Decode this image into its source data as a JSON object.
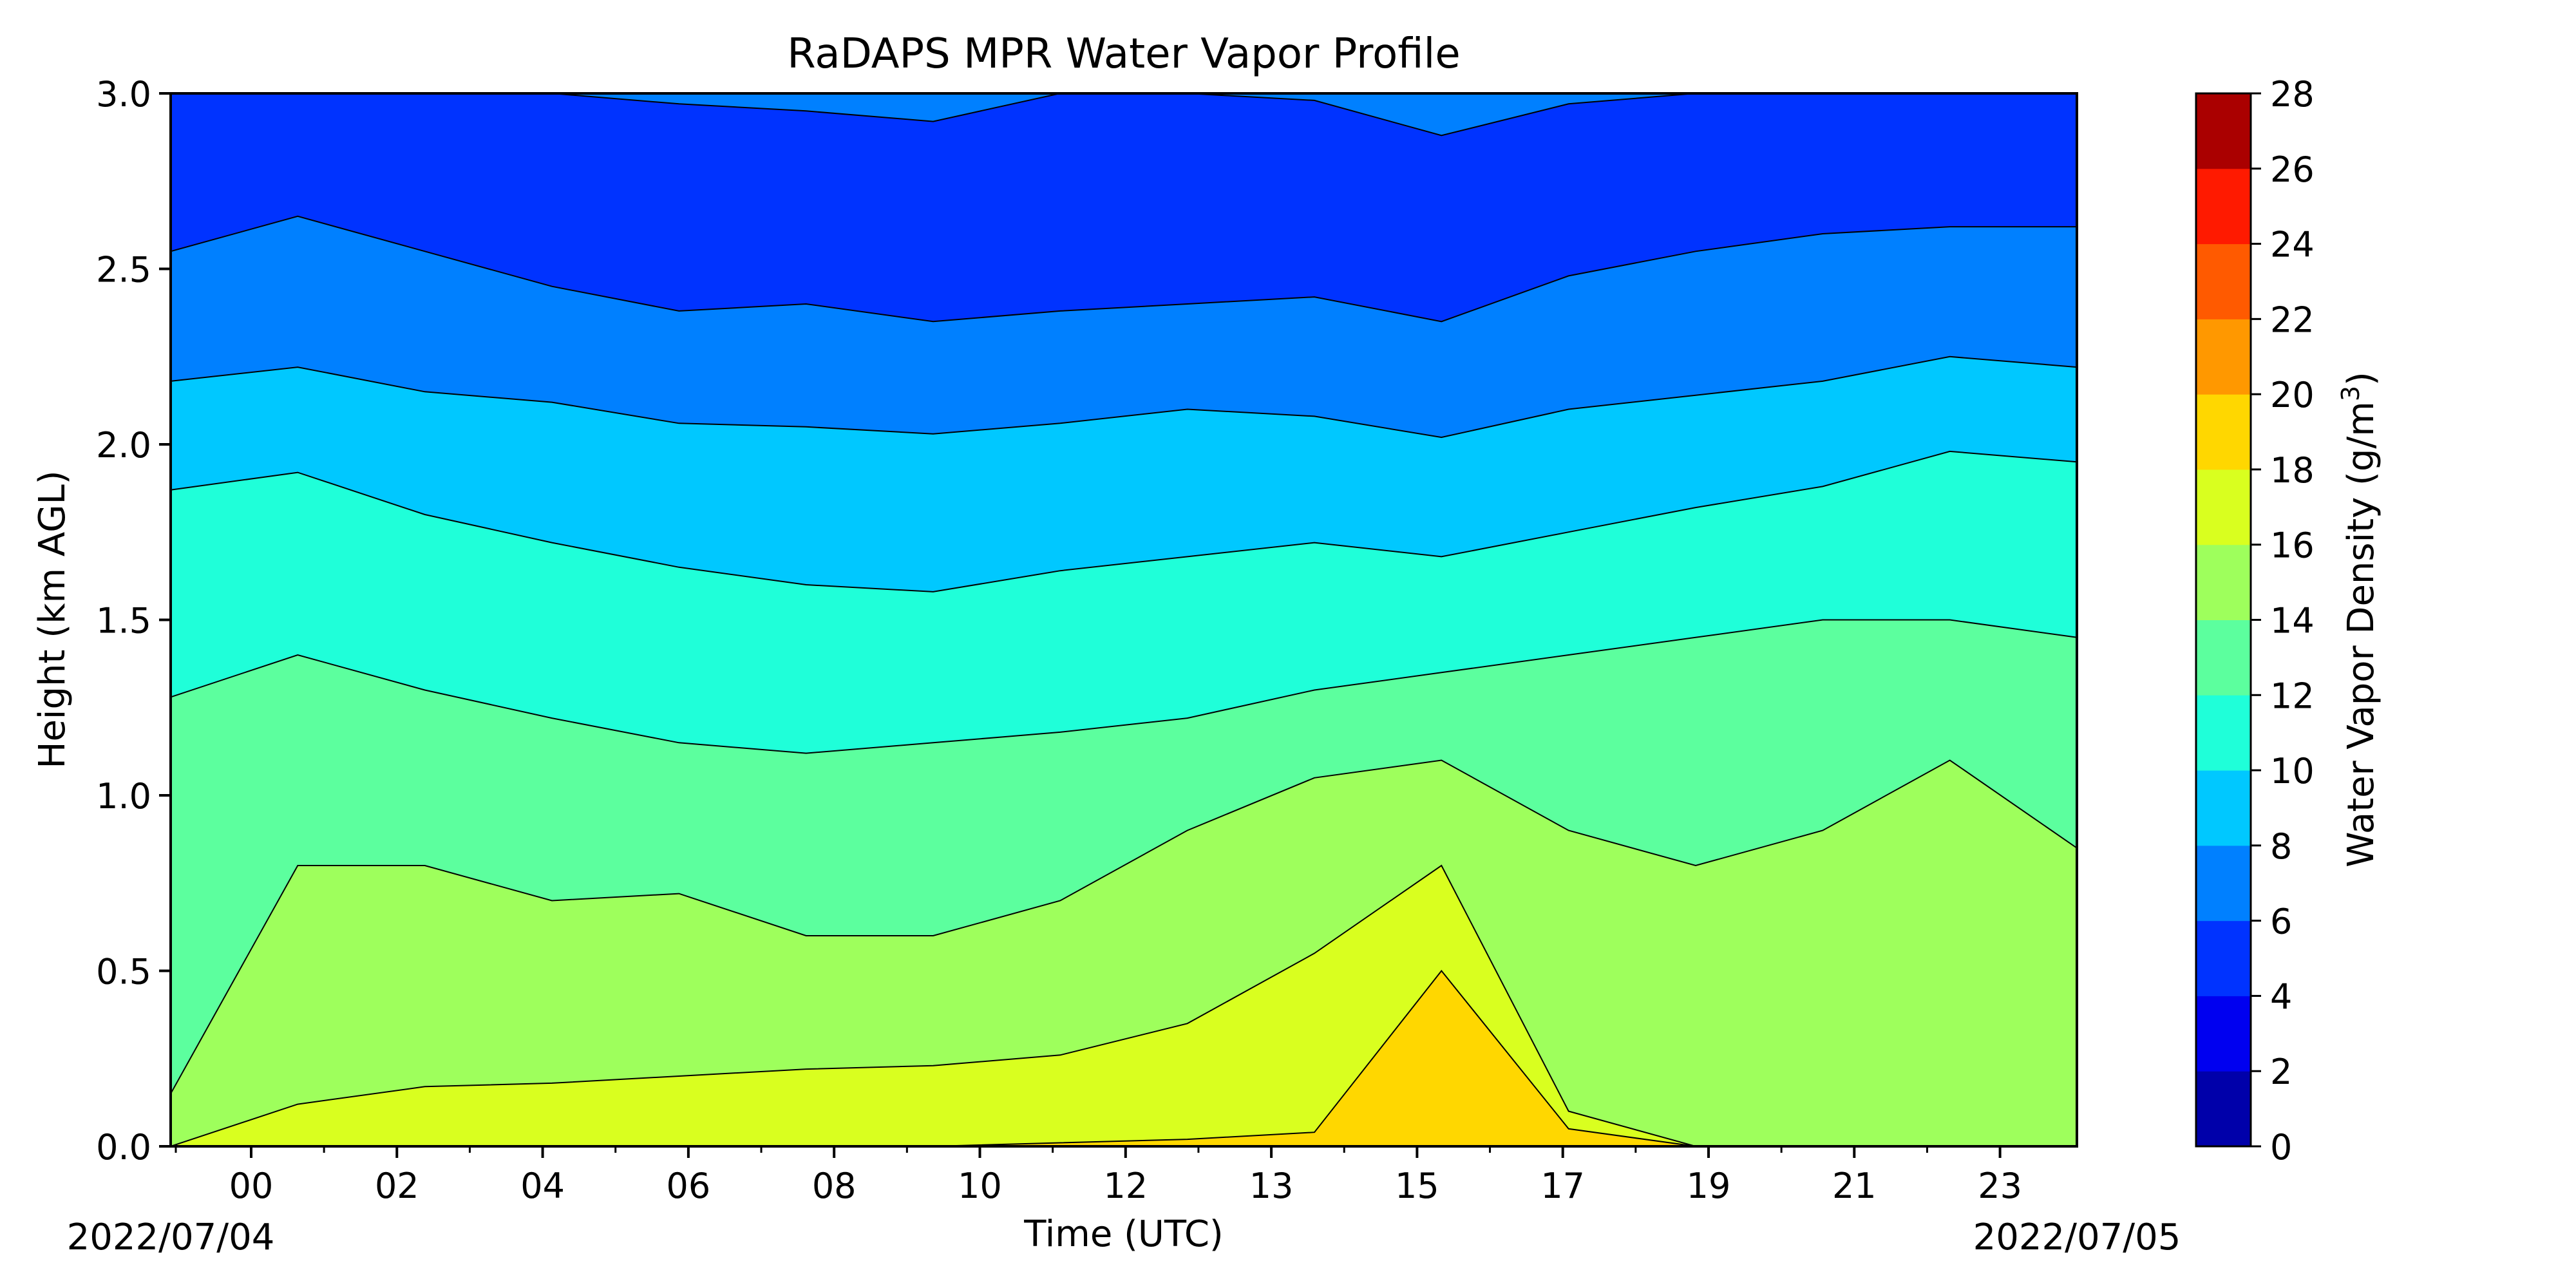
{
  "chart_data": {
    "type": "heatmap",
    "title": "RaDAPS MPR Water Vapor Profile",
    "xlabel": "Time (UTC)",
    "ylabel": "Height (km AGL)",
    "x_ticks": [
      "00",
      "02",
      "04",
      "06",
      "08",
      "10",
      "12",
      "13",
      "15",
      "17",
      "19",
      "21",
      "23"
    ],
    "y_ticks": [
      "0.0",
      "0.5",
      "1.0",
      "1.5",
      "2.0",
      "2.5",
      "3.0"
    ],
    "y_tick_values": [
      0.0,
      0.5,
      1.0,
      1.5,
      2.0,
      2.5,
      3.0
    ],
    "ylim": [
      0.0,
      3.0
    ],
    "date_start": "2022/07/04",
    "date_end": "2022/07/05",
    "colorbar": {
      "label": "Water Vapor Density (g/m",
      "label_sup": "3",
      "label_end": ")",
      "levels": [
        0,
        2,
        4,
        6,
        8,
        10,
        12,
        14,
        16,
        18,
        20,
        22,
        24,
        26,
        28
      ],
      "tick_labels": [
        "0",
        "2",
        "4",
        "6",
        "8",
        "10",
        "12",
        "14",
        "16",
        "18",
        "20",
        "22",
        "24",
        "26",
        "28"
      ],
      "colors": [
        "#0000aa",
        "#0000f0",
        "#0033ff",
        "#0080ff",
        "#00c8ff",
        "#1fffd9",
        "#5cff9e",
        "#9eff5c",
        "#d9ff1f",
        "#ffd700",
        "#ff9800",
        "#ff5a00",
        "#ff1a00",
        "#aa0000"
      ]
    },
    "contour_boundaries": [
      {
        "level": 20,
        "heights_km": [
          0.0,
          0.0,
          0.0,
          0.0,
          0.0,
          0.0,
          0.0,
          0.01,
          0.02,
          0.04,
          0.5,
          0.05,
          0.0,
          0.0,
          0.0,
          0.0
        ]
      },
      {
        "level": 18,
        "heights_km": [
          0.0,
          0.12,
          0.17,
          0.18,
          0.2,
          0.22,
          0.23,
          0.26,
          0.35,
          0.55,
          0.8,
          0.1,
          0.0,
          0.0,
          0.0,
          0.0
        ]
      },
      {
        "level": 16,
        "heights_km": [
          0.15,
          0.8,
          0.8,
          0.7,
          0.72,
          0.6,
          0.6,
          0.7,
          0.9,
          1.05,
          1.1,
          0.9,
          0.8,
          0.9,
          1.1,
          0.85
        ]
      },
      {
        "level": 14,
        "heights_km": [
          1.28,
          1.4,
          1.3,
          1.22,
          1.15,
          1.12,
          1.15,
          1.18,
          1.22,
          1.3,
          1.35,
          1.4,
          1.45,
          1.5,
          1.5,
          1.45
        ]
      },
      {
        "level": 12,
        "heights_km": [
          1.87,
          1.92,
          1.8,
          1.72,
          1.65,
          1.6,
          1.58,
          1.64,
          1.68,
          1.72,
          1.68,
          1.75,
          1.82,
          1.88,
          1.98,
          1.95
        ]
      },
      {
        "level": 10,
        "heights_km": [
          2.18,
          2.22,
          2.15,
          2.12,
          2.06,
          2.05,
          2.03,
          2.06,
          2.1,
          2.08,
          2.02,
          2.1,
          2.14,
          2.18,
          2.25,
          2.22
        ]
      },
      {
        "level": 8,
        "heights_km": [
          2.55,
          2.65,
          2.55,
          2.45,
          2.38,
          2.4,
          2.35,
          2.38,
          2.4,
          2.42,
          2.35,
          2.48,
          2.55,
          2.6,
          2.62,
          2.62
        ]
      },
      {
        "level": 6,
        "heights_km": [
          3.0,
          3.0,
          3.0,
          3.0,
          2.97,
          2.95,
          2.92,
          3.0,
          3.0,
          2.98,
          2.88,
          2.97,
          3.0,
          3.0,
          3.0,
          3.0
        ]
      }
    ]
  }
}
